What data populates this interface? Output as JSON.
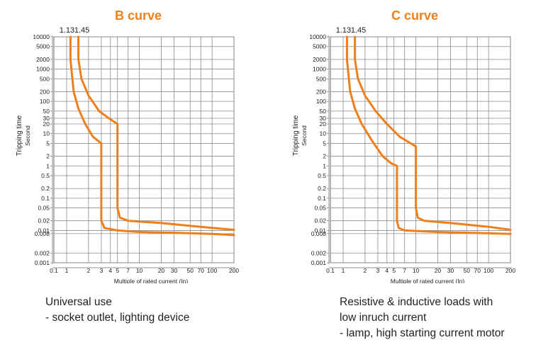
{
  "colors": {
    "curve": "#f07f1a",
    "grid": "#8c8c8c",
    "frame": "#6f6f6f",
    "text": "#222222"
  },
  "chart_data": [
    {
      "type": "line",
      "title": "B curve",
      "xlabel": "Multiple of rated current (In)",
      "ylabel": "Tripping time",
      "ylabel2": "Second",
      "xscale": "log",
      "yscale": "log",
      "xlim": [
        0.1,
        200
      ],
      "ylim": [
        0.001,
        10000
      ],
      "grid": true,
      "x_tick_labels": [
        "0.1",
        "1",
        "2",
        "3",
        "4",
        "5",
        "7",
        "10",
        "20",
        "30",
        "50",
        "70",
        "100",
        "200"
      ],
      "y_tick_labels": [
        "10000",
        "5000",
        "2000",
        "1000",
        "500",
        "200",
        "100",
        "50",
        "30",
        "20",
        "10",
        "5",
        "2",
        "1",
        "0.5",
        "0.2",
        "0.1",
        "0.05",
        "0.02",
        "0.01",
        "0.008",
        "0.002",
        "0.001"
      ],
      "curve_labels": [
        "1.13",
        "1.45"
      ],
      "series": [
        {
          "points": [
            [
              1.13,
              10000
            ],
            [
              1.13,
              2000
            ],
            [
              1.25,
              200
            ],
            [
              1.45,
              60
            ],
            [
              1.8,
              20
            ],
            [
              2.3,
              8
            ],
            [
              3,
              5
            ],
            [
              3,
              0.02
            ],
            [
              3.3,
              0.012
            ],
            [
              5,
              0.01
            ],
            [
              10,
              0.009
            ],
            [
              30,
              0.0085
            ],
            [
              100,
              0.0078
            ],
            [
              200,
              0.0072
            ]
          ]
        },
        {
          "points": [
            [
              1.45,
              10000
            ],
            [
              1.45,
              2000
            ],
            [
              1.6,
              500
            ],
            [
              2,
              150
            ],
            [
              2.8,
              50
            ],
            [
              3.8,
              30
            ],
            [
              5,
              20
            ],
            [
              5,
              0.05
            ],
            [
              5.4,
              0.025
            ],
            [
              7,
              0.02
            ],
            [
              20,
              0.017
            ],
            [
              100,
              0.012
            ],
            [
              200,
              0.0105
            ]
          ]
        }
      ]
    },
    {
      "type": "line",
      "title": "C curve",
      "xlabel": "Multiple of rated current (In)",
      "ylabel": "Tripping time",
      "ylabel2": "Second",
      "xscale": "log",
      "yscale": "log",
      "xlim": [
        0.1,
        200
      ],
      "ylim": [
        0.001,
        10000
      ],
      "grid": true,
      "x_tick_labels": [
        "0.1",
        "1",
        "2",
        "3",
        "4",
        "5",
        "7",
        "10",
        "20",
        "30",
        "50",
        "70",
        "100",
        "200"
      ],
      "y_tick_labels": [
        "10000",
        "5000",
        "2000",
        "1000",
        "500",
        "200",
        "100",
        "50",
        "30",
        "20",
        "10",
        "5",
        "2",
        "1",
        "0.5",
        "0.2",
        "0.1",
        "0.05",
        "0.02",
        "0.01",
        "0.008",
        "0.002",
        "0.001"
      ],
      "curve_labels": [
        "1.13",
        "1.45"
      ],
      "series": [
        {
          "points": [
            [
              1.13,
              10000
            ],
            [
              1.13,
              2000
            ],
            [
              1.25,
              200
            ],
            [
              1.45,
              60
            ],
            [
              1.8,
              20
            ],
            [
              2.5,
              6
            ],
            [
              3.5,
              2
            ],
            [
              4.6,
              1.2
            ],
            [
              5.5,
              1
            ],
            [
              5.5,
              0.02
            ],
            [
              5.8,
              0.012
            ],
            [
              7,
              0.01
            ],
            [
              20,
              0.009
            ],
            [
              100,
              0.0082
            ],
            [
              200,
              0.0078
            ]
          ]
        },
        {
          "points": [
            [
              1.45,
              10000
            ],
            [
              1.45,
              2000
            ],
            [
              1.6,
              500
            ],
            [
              2,
              150
            ],
            [
              2.8,
              50
            ],
            [
              4,
              20
            ],
            [
              6,
              8
            ],
            [
              10,
              4
            ],
            [
              10,
              0.05
            ],
            [
              10.6,
              0.025
            ],
            [
              13,
              0.02
            ],
            [
              30,
              0.017
            ],
            [
              100,
              0.013
            ],
            [
              200,
              0.0105
            ]
          ]
        }
      ]
    }
  ],
  "captions": {
    "left": [
      "Universal use",
      "- socket outlet, lighting device"
    ],
    "right": [
      "Resistive & inductive loads with",
      "low inruch current",
      "- lamp, high starting current motor"
    ]
  }
}
